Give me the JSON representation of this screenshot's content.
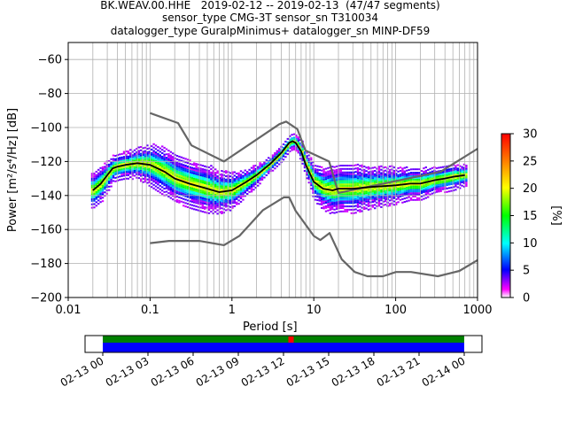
{
  "title_lines": [
    "BK.WEAV.00.HHE   2019-02-12 -- 2019-02-13  (47/47 segments)",
    "sensor_type CMG-3T sensor_sn T310034",
    "datalogger_type GuralpMinimus+ datalogger_sn MINP-DF59"
  ],
  "chart_data": [
    {
      "type": "heatmap",
      "title": "BK.WEAV.00.HHE   2019-02-12 -- 2019-02-13  (47/47 segments)",
      "xlabel": "Period [s]",
      "ylabel": "Power [m²/s⁴/Hz] [dB]",
      "xscale": "log",
      "xlim": [
        0.01,
        1000
      ],
      "ylim": [
        -200,
        -50
      ],
      "x_tick_labels": [
        "0.01",
        "0.1",
        "1",
        "10",
        "100",
        "1000"
      ],
      "y_ticks": [
        -60,
        -80,
        -100,
        -120,
        -140,
        -160,
        -180,
        -200
      ],
      "grid": true,
      "colorbar": {
        "label": "[%]",
        "min": 0,
        "max": 30,
        "ticks": [
          0,
          5,
          10,
          15,
          20,
          25,
          30
        ]
      },
      "mean_curve": {
        "x": [
          0.02,
          0.025,
          0.03,
          0.035,
          0.04,
          0.05,
          0.07,
          0.1,
          0.15,
          0.2,
          0.3,
          0.5,
          0.7,
          1,
          1.5,
          2,
          3,
          4,
          5,
          5.5,
          6,
          7,
          8,
          10,
          13,
          17,
          20,
          30,
          50,
          100,
          150,
          200,
          300,
          400,
          500,
          700
        ],
        "y": [
          -137,
          -133,
          -128,
          -124,
          -123,
          -122,
          -121,
          -122,
          -126,
          -130,
          -133,
          -136,
          -138,
          -137,
          -132,
          -128,
          -121,
          -115,
          -109,
          -108,
          -109,
          -114,
          -122,
          -132,
          -136,
          -137,
          -136,
          -136,
          -135,
          -134,
          -133,
          -133,
          -131,
          -130,
          -129,
          -128
        ]
      },
      "nhnm": {
        "x": [
          0.1,
          0.22,
          0.32,
          0.8,
          3.8,
          4.6,
          6.3,
          7.9,
          15.4,
          20,
          354.8,
          1000
        ],
        "y": [
          -91.5,
          -97.4,
          -110.5,
          -120,
          -98,
          -96.5,
          -101,
          -113.5,
          -120,
          -138.5,
          -126,
          -112.5
        ]
      },
      "nlnm": {
        "x": [
          0.1,
          0.17,
          0.4,
          0.8,
          1.24,
          2.4,
          4.3,
          5,
          6,
          10,
          12,
          15.6,
          21.9,
          31.6,
          45,
          70,
          101,
          154,
          328,
          600,
          1000
        ],
        "y": [
          -168,
          -166.7,
          -166.7,
          -169.2,
          -163.7,
          -148.6,
          -141.1,
          -141.1,
          -149,
          -163.8,
          -166.2,
          -162.1,
          -177.5,
          -185,
          -187.5,
          -187.5,
          -185,
          -185,
          -187.5,
          -184.4,
          -178
        ]
      },
      "density_band_halfwidth": [
        7,
        7,
        6,
        5,
        5,
        5,
        6,
        8,
        9,
        9,
        9,
        9,
        8,
        7,
        5,
        4,
        3,
        3,
        3,
        3,
        3,
        4,
        5,
        7,
        8,
        9,
        9,
        9,
        8,
        7,
        6,
        6,
        5,
        5,
        5,
        4
      ]
    },
    {
      "type": "timeline",
      "x_tick_labels": [
        "02-13 00",
        "02-13 03",
        "02-13 06",
        "02-13 09",
        "02-13 12",
        "02-13 15",
        "02-13 18",
        "02-13 21",
        "02-14 00"
      ],
      "coverage_start": "02-13 00",
      "coverage_end": "02-14 00",
      "marker_time": "02-13 12:30",
      "colors": {
        "upper": "#008000",
        "lower": "#0000ff",
        "marker": "#ff0000"
      }
    }
  ]
}
